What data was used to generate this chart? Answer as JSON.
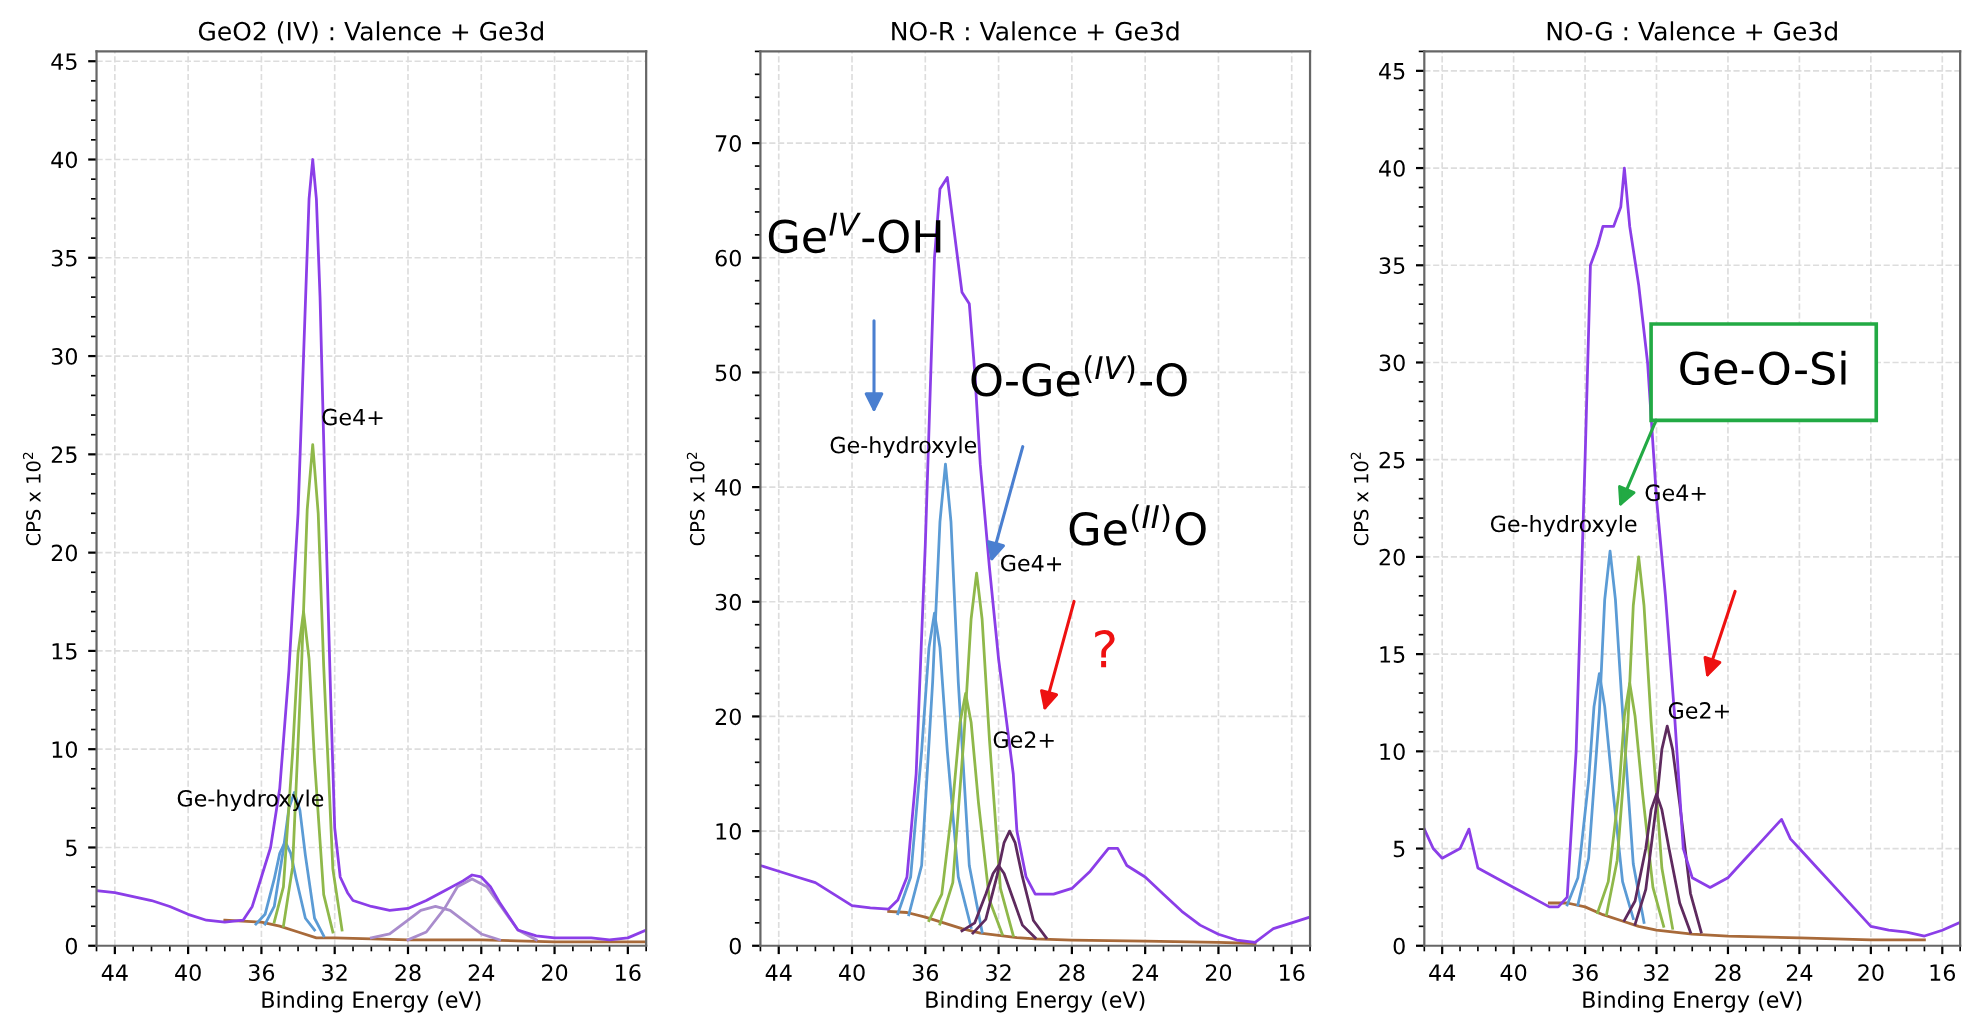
{
  "chart_data": [
    {
      "type": "line",
      "title": "GeO2 (IV) : Valence + Ge3d",
      "xlabel": "Binding Energy (eV)",
      "ylabel": "CPS x 10$^{2}$",
      "xlim": [
        45,
        15
      ],
      "xticks": [
        44,
        40,
        36,
        32,
        28,
        24,
        20,
        16
      ],
      "ylim": [
        0,
        45.5
      ],
      "yticks": [
        0,
        5,
        10,
        15,
        20,
        25,
        30,
        35,
        40,
        45
      ],
      "grid": true,
      "marker": "none",
      "line_style": "solid",
      "series": [
        {
          "color": "#a86a3a",
          "x": [
            38,
            36,
            35,
            34,
            33,
            32,
            28,
            24,
            20,
            15
          ],
          "values": [
            1.3,
            1.2,
            1.0,
            0.7,
            0.4,
            0.4,
            0.3,
            0.3,
            0.2,
            0.2
          ]
        },
        {
          "color": "#5b9bd5",
          "x": [
            36.3,
            35.8,
            35.3,
            35.0,
            34.7,
            34.4,
            34.1,
            33.6,
            33.1
          ],
          "values": [
            1.1,
            1.6,
            3.4,
            4.7,
            5.3,
            4.7,
            3.4,
            1.4,
            0.8
          ]
        },
        {
          "color": "#5b9bd5",
          "x": [
            35.8,
            35.3,
            34.8,
            34.5,
            34.2,
            33.9,
            33.6,
            33.1,
            32.6
          ],
          "values": [
            1.1,
            2.0,
            4.9,
            7.0,
            7.8,
            6.9,
            4.6,
            1.4,
            0.5
          ]
        },
        {
          "color": "#8fb84a",
          "x": [
            35.3,
            34.8,
            34.3,
            34.0,
            33.7,
            33.4,
            33.1,
            32.6,
            32.1
          ],
          "values": [
            1.2,
            3.0,
            9.8,
            14.9,
            17,
            14.6,
            9.4,
            2.6,
            0.7
          ]
        },
        {
          "color": "#8fb84a",
          "x": [
            34.8,
            34.3,
            33.8,
            33.5,
            33.2,
            32.9,
            32.6,
            32.1,
            31.6
          ],
          "values": [
            1.0,
            4.0,
            14.5,
            22.2,
            25.5,
            22.0,
            14.2,
            3.9,
            0.8
          ]
        },
        {
          "color": "#a98ccc",
          "x": [
            30,
            29,
            28,
            27.3,
            26.5,
            25.7,
            25,
            24,
            23
          ],
          "values": [
            0.4,
            0.6,
            1.3,
            1.8,
            2.0,
            1.8,
            1.3,
            0.6,
            0.3
          ]
        },
        {
          "color": "#a98ccc",
          "x": [
            28,
            27,
            26,
            25.3,
            24.5,
            23.7,
            23,
            22,
            21
          ],
          "values": [
            0.3,
            0.7,
            1.9,
            3.0,
            3.4,
            3.0,
            2.1,
            0.8,
            0.3
          ]
        },
        {
          "color": "#8b3ee8",
          "x": [
            45,
            44,
            43,
            42,
            41,
            40,
            39,
            38,
            37,
            36.5,
            36,
            35.5,
            35,
            34.5,
            34,
            33.7,
            33.4,
            33.2,
            33.0,
            32.8,
            32.5,
            32.2,
            32,
            31.7,
            31.3,
            31,
            30,
            29,
            28,
            27,
            26,
            25,
            24.5,
            24,
            23.5,
            23,
            22.5,
            22,
            21,
            20,
            19,
            18,
            17,
            16,
            15
          ],
          "values": [
            2.8,
            2.7,
            2.5,
            2.3,
            2.0,
            1.6,
            1.3,
            1.2,
            1.3,
            2,
            3.5,
            5,
            8,
            14,
            22,
            30,
            38,
            40,
            38,
            33,
            22,
            12,
            6,
            3.5,
            2.7,
            2.3,
            2.0,
            1.8,
            1.9,
            2.3,
            2.8,
            3.3,
            3.6,
            3.5,
            3.0,
            2.2,
            1.5,
            0.8,
            0.5,
            0.4,
            0.4,
            0.4,
            0.3,
            0.4,
            0.8
          ]
        }
      ],
      "annotations": [
        "Ge4+",
        "Ge-hydroxyle"
      ]
    },
    {
      "type": "line",
      "title": "NO-R : Valence + Ge3d",
      "xlabel": "Binding Energy (eV)",
      "ylabel": "CPS x 10$^{2}$",
      "xlim": [
        45,
        15
      ],
      "xticks": [
        44,
        40,
        36,
        32,
        28,
        24,
        20,
        16
      ],
      "ylim": [
        0,
        78
      ],
      "yticks": [
        0,
        10,
        20,
        30,
        40,
        50,
        60,
        70
      ],
      "grid": true,
      "marker": "none",
      "line_style": "solid",
      "series": [
        {
          "color": "#a86a3a",
          "x": [
            38,
            37,
            36,
            35,
            34,
            33,
            32,
            31,
            30,
            28,
            24,
            20,
            18
          ],
          "values": [
            3.0,
            2.9,
            2.5,
            2.0,
            1.5,
            1.1,
            0.9,
            0.7,
            0.6,
            0.5,
            0.4,
            0.3,
            0.2
          ]
        },
        {
          "color": "#5b9bd5",
          "x": [
            37.5,
            36.8,
            36.2,
            35.8,
            35.5,
            35.2,
            34.8,
            34.2,
            33.5
          ],
          "values": [
            2.8,
            6,
            17,
            26,
            29,
            26,
            17,
            6,
            1.6
          ]
        },
        {
          "color": "#5b9bd5",
          "x": [
            36.9,
            36.2,
            35.6,
            35.2,
            34.9,
            34.6,
            34.2,
            33.6,
            32.9
          ],
          "values": [
            2.7,
            7,
            23,
            37,
            42,
            37,
            23,
            7,
            1.2
          ]
        },
        {
          "color": "#8fb84a",
          "x": [
            35.8,
            35.1,
            34.5,
            34.1,
            33.8,
            33.5,
            33.1,
            32.5,
            31.8
          ],
          "values": [
            2.2,
            4.5,
            12.5,
            19.5,
            22,
            19.5,
            12.5,
            4,
            1
          ]
        },
        {
          "color": "#8fb84a",
          "x": [
            35.2,
            34.5,
            33.9,
            33.5,
            33.2,
            32.9,
            32.5,
            31.9,
            31.2
          ],
          "values": [
            1.9,
            5.5,
            18,
            28.5,
            32.5,
            28.5,
            18,
            5,
            0.9
          ]
        },
        {
          "color": "#5e2a5e",
          "x": [
            34,
            33.3,
            32.7,
            32.3,
            32.0,
            31.7,
            31.3,
            30.7,
            30
          ],
          "values": [
            1.3,
            2,
            4.5,
            6.3,
            7,
            6.3,
            4.5,
            1.8,
            0.7
          ]
        },
        {
          "color": "#5e2a5e",
          "x": [
            33.4,
            32.7,
            32.1,
            31.7,
            31.4,
            31.1,
            30.7,
            30.1,
            29.4
          ],
          "values": [
            1.1,
            2.3,
            6,
            9,
            10,
            9,
            6,
            2.2,
            0.7
          ]
        },
        {
          "color": "#8b3ee8",
          "x": [
            45,
            44,
            43,
            42,
            41,
            40,
            39,
            38,
            37.5,
            37,
            36.5,
            36,
            35.5,
            35.2,
            34.8,
            34.4,
            34,
            33.6,
            33.3,
            33,
            32.5,
            32,
            31.6,
            31.2,
            31,
            30.5,
            30,
            29,
            28,
            27,
            26,
            25.5,
            25,
            24,
            23,
            22,
            21,
            20,
            19,
            18,
            17,
            16,
            15
          ],
          "values": [
            7,
            6.5,
            6,
            5.5,
            4.5,
            3.5,
            3.3,
            3.2,
            4,
            6,
            15,
            35,
            60,
            66,
            67,
            62,
            57,
            56,
            50,
            42,
            33,
            25,
            20,
            15,
            10,
            6,
            4.5,
            4.5,
            5,
            6.5,
            8.5,
            8.5,
            7,
            6,
            4.5,
            3,
            1.8,
            1,
            0.5,
            0.3,
            1.5,
            2,
            2.5
          ]
        }
      ],
      "annotations": [
        "Ge-hydroxyle",
        "Ge4+",
        "Ge2+",
        "Ge$^{IV}$-OH",
        {
          "text": "O-Ge$^{(IV)}$-O",
          "x": 32.5,
          "y": 33
        },
        "Ge$^{(II)}$O",
        "?"
      ]
    },
    {
      "type": "line",
      "title": "NO-G : Valence + Ge3d",
      "xlabel": "Binding Energy (eV)",
      "ylabel": "CPS x 10$^{2}$",
      "xlim": [
        45,
        15
      ],
      "xticks": [
        44,
        40,
        36,
        32,
        28,
        24,
        20,
        16
      ],
      "ylim": [
        0,
        46
      ],
      "yticks": [
        0,
        5,
        10,
        15,
        20,
        25,
        30,
        35,
        40,
        45
      ],
      "grid": true,
      "marker": "none",
      "line_style": "solid",
      "series": [
        {
          "color": "#a86a3a",
          "x": [
            38,
            37,
            36,
            35,
            34,
            33,
            32,
            30,
            28,
            24,
            20,
            17
          ],
          "values": [
            2.2,
            2.2,
            2.0,
            1.6,
            1.3,
            1.0,
            0.8,
            0.6,
            0.5,
            0.4,
            0.3,
            0.3
          ]
        },
        {
          "color": "#5b9bd5",
          "x": [
            37,
            36.4,
            35.8,
            35.5,
            35.2,
            34.9,
            34.5,
            33.9,
            33.3
          ],
          "values": [
            2.1,
            3.5,
            8.5,
            12.3,
            14,
            12.3,
            8.5,
            3.3,
            1.4
          ]
        },
        {
          "color": "#5b9bd5",
          "x": [
            36.4,
            35.8,
            35.2,
            34.9,
            34.6,
            34.3,
            33.9,
            33.3,
            32.7
          ],
          "values": [
            2.1,
            4.5,
            12,
            17.8,
            20.3,
            17.8,
            12,
            4.2,
            1.2
          ]
        },
        {
          "color": "#8fb84a",
          "x": [
            35.3,
            34.7,
            34.1,
            33.8,
            33.5,
            33.2,
            32.8,
            32.2,
            31.6
          ],
          "values": [
            1.7,
            3.3,
            8,
            11.8,
            13.5,
            11.8,
            8,
            3,
            1
          ]
        },
        {
          "color": "#8fb84a",
          "x": [
            34.8,
            34.2,
            33.6,
            33.3,
            33.0,
            32.7,
            32.3,
            31.7,
            31.1
          ],
          "values": [
            1.6,
            4.4,
            11.5,
            17.5,
            20,
            17.5,
            11.5,
            4,
            0.9
          ]
        },
        {
          "color": "#5e2a5e",
          "x": [
            33.8,
            33.2,
            32.6,
            32.3,
            32.0,
            31.7,
            31.3,
            30.7,
            30.1
          ],
          "values": [
            1.3,
            2.3,
            5,
            7,
            7.8,
            7,
            5,
            2.2,
            0.7
          ]
        },
        {
          "color": "#5e2a5e",
          "x": [
            33.2,
            32.6,
            32,
            31.7,
            31.4,
            31.1,
            30.7,
            30.1,
            29.5
          ],
          "values": [
            1.1,
            2.9,
            7.3,
            10.1,
            11.3,
            10.1,
            7.3,
            2.7,
            0.7
          ]
        },
        {
          "color": "#8b3ee8",
          "x": [
            45,
            44.5,
            44,
            43,
            42.5,
            42,
            41,
            40,
            39,
            38,
            37.5,
            37,
            36.5,
            36,
            35.7,
            35.3,
            35,
            34.4,
            34,
            33.8,
            33.5,
            33,
            32.5,
            32,
            31.5,
            31,
            30.5,
            30,
            29,
            28,
            27,
            26,
            25,
            24.5,
            24,
            23,
            22,
            21,
            20,
            19,
            18,
            17,
            16,
            15
          ],
          "values": [
            6,
            5,
            4.5,
            5,
            6,
            4,
            3.5,
            3,
            2.5,
            2,
            2,
            2.5,
            10,
            25,
            35,
            36,
            37,
            37,
            38,
            40,
            37,
            34,
            30,
            23,
            18,
            12,
            5,
            3.5,
            3,
            3.5,
            4.5,
            5.5,
            6.5,
            5.5,
            5,
            4,
            3,
            2,
            1,
            0.8,
            0.7,
            0.5,
            0.8,
            1.2
          ]
        }
      ],
      "annotations": [
        "Ge-hydroxyle",
        "Ge4+",
        "Ge2+",
        "Ge-O-Si"
      ]
    }
  ]
}
